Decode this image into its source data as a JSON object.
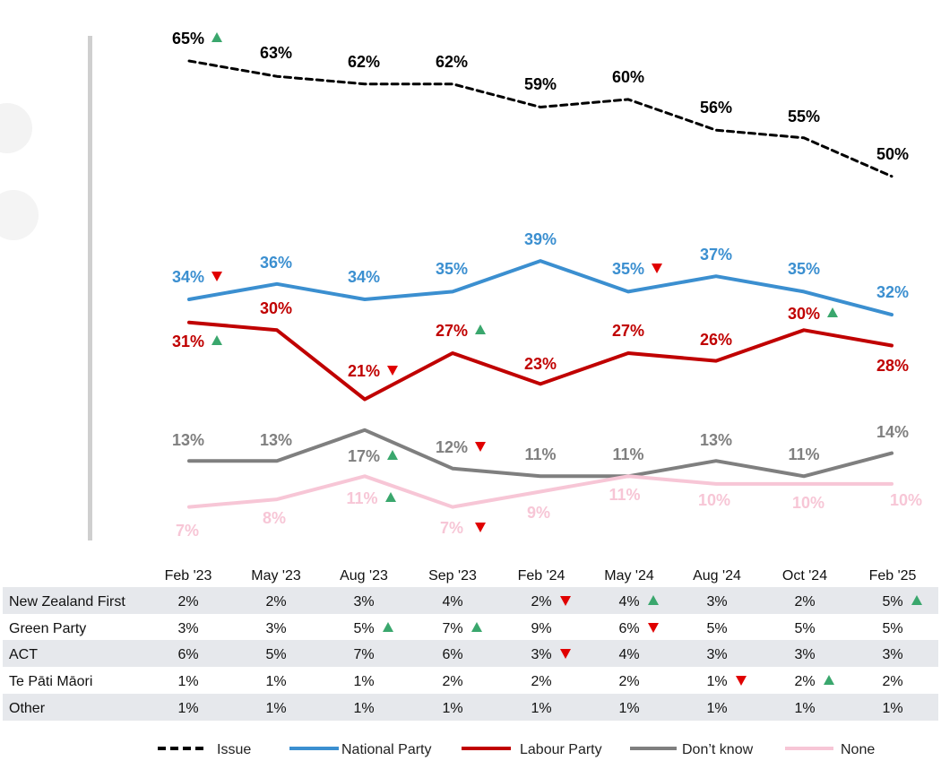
{
  "chart_data": {
    "type": "line",
    "categories": [
      "Feb '23",
      "May '23",
      "Aug '23",
      "Sep '23",
      "Feb '24",
      "May '24",
      "Aug '24",
      "Oct '24",
      "Feb '25"
    ],
    "ylim": [
      0,
      70
    ],
    "series": [
      {
        "name": "Issue",
        "key": "issue",
        "color": "#000000",
        "dashed": true,
        "width": 3,
        "values": [
          65,
          63,
          62,
          62,
          59,
          60,
          56,
          55,
          50
        ],
        "labels": [
          "65%",
          "63%",
          "62%",
          "62%",
          "59%",
          "60%",
          "56%",
          "55%",
          "50%"
        ],
        "markers": [
          "up",
          "",
          "",
          "",
          "",
          "",
          "",
          "",
          ""
        ]
      },
      {
        "name": "National Party",
        "key": "national",
        "color": "#3b8fd0",
        "dashed": false,
        "width": 4,
        "values": [
          34,
          36,
          34,
          35,
          39,
          35,
          37,
          35,
          32
        ],
        "labels": [
          "34%",
          "36%",
          "34%",
          "35%",
          "39%",
          "35%",
          "37%",
          "35%",
          "32%"
        ],
        "markers": [
          "down",
          "",
          "",
          "",
          "",
          "down",
          "",
          "",
          ""
        ]
      },
      {
        "name": "Labour Party",
        "key": "labour",
        "color": "#c00000",
        "dashed": false,
        "width": 4,
        "values": [
          31,
          30,
          21,
          27,
          23,
          27,
          26,
          30,
          28
        ],
        "labels": [
          "31%",
          "30%",
          "21%",
          "27%",
          "23%",
          "27%",
          "26%",
          "30%",
          "28%"
        ],
        "markers": [
          "up",
          "",
          "down",
          "up",
          "",
          "",
          "",
          "up",
          ""
        ]
      },
      {
        "name": "Don't know",
        "key": "dontknow",
        "color": "#7f7f7f",
        "dashed": false,
        "width": 4,
        "values": [
          13,
          13,
          17,
          12,
          11,
          11,
          13,
          11,
          14
        ],
        "labels": [
          "13%",
          "13%",
          "17%",
          "12%",
          "11%",
          "11%",
          "13%",
          "11%",
          "14%"
        ],
        "markers": [
          "",
          "",
          "up",
          "down",
          "",
          "",
          "",
          "",
          ""
        ]
      },
      {
        "name": "None",
        "key": "none",
        "color": "#f7c6d6",
        "dashed": false,
        "width": 4,
        "values": [
          7,
          8,
          11,
          7,
          9,
          11,
          10,
          10,
          10
        ],
        "labels": [
          "7%",
          "8%",
          "11%",
          "7%",
          "9%",
          "11%",
          "10%",
          "10%",
          "10%"
        ],
        "markers": [
          "",
          "",
          "up",
          "down",
          "",
          "",
          "",
          "",
          ""
        ]
      }
    ],
    "table": {
      "rows": [
        {
          "name": "New Zealand First",
          "shaded": true,
          "values": [
            "2%",
            "2%",
            "3%",
            "4%",
            "2%",
            "4%",
            "3%",
            "2%",
            "5%"
          ],
          "markers": [
            "",
            "",
            "",
            "",
            "down",
            "up",
            "",
            "",
            "up"
          ]
        },
        {
          "name": "Green Party",
          "shaded": false,
          "values": [
            "3%",
            "3%",
            "5%",
            "7%",
            "9%",
            "6%",
            "5%",
            "5%",
            "5%"
          ],
          "markers": [
            "",
            "",
            "up",
            "up",
            "",
            "down",
            "",
            "",
            ""
          ]
        },
        {
          "name": "ACT",
          "shaded": true,
          "values": [
            "6%",
            "5%",
            "7%",
            "6%",
            "3%",
            "4%",
            "3%",
            "3%",
            "3%"
          ],
          "markers": [
            "",
            "",
            "",
            "",
            "down",
            "",
            "",
            "",
            ""
          ]
        },
        {
          "name": "Te Pāti Māori",
          "shaded": false,
          "values": [
            "1%",
            "1%",
            "1%",
            "2%",
            "2%",
            "2%",
            "1%",
            "2%",
            "2%"
          ],
          "markers": [
            "",
            "",
            "",
            "",
            "",
            "",
            "down",
            "up",
            ""
          ]
        },
        {
          "name": "Other",
          "shaded": true,
          "values": [
            "1%",
            "1%",
            "1%",
            "1%",
            "1%",
            "1%",
            "1%",
            "1%",
            "1%"
          ],
          "markers": [
            "",
            "",
            "",
            "",
            "",
            "",
            "",
            "",
            ""
          ]
        }
      ]
    },
    "legend": [
      "Issue",
      "National Party",
      "Labour Party",
      "Don’t know",
      "None"
    ],
    "marker_colors": {
      "up": "#3aa76d",
      "down": "#e00000"
    }
  }
}
